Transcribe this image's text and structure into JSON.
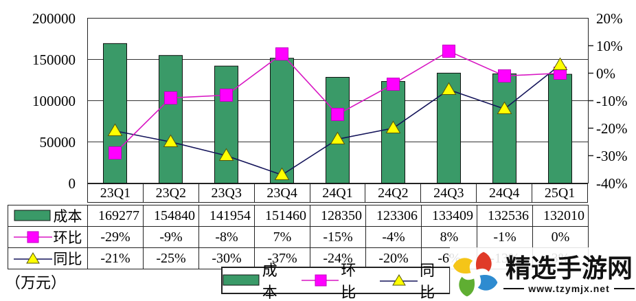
{
  "chart_data": {
    "type": "combo-bar-line",
    "categories": [
      "23Q1",
      "23Q2",
      "23Q3",
      "23Q4",
      "24Q1",
      "24Q2",
      "24Q3",
      "24Q4",
      "25Q1"
    ],
    "series": [
      {
        "name": "成本",
        "type": "bar",
        "axis": "left",
        "marker": "bar-swatch",
        "values": [
          169277,
          154840,
          141954,
          151460,
          128350,
          123306,
          133409,
          132536,
          132010
        ],
        "color": "#3A9A68",
        "line_color": "#111111"
      },
      {
        "name": "环比",
        "type": "line",
        "axis": "right",
        "marker": "square",
        "values": [
          -29,
          -9,
          -8,
          7,
          -15,
          -4,
          8,
          -1,
          0
        ],
        "color": "#FF00FF",
        "line_color": "#D817C3"
      },
      {
        "name": "同比",
        "type": "line",
        "axis": "right",
        "marker": "triangle",
        "values": [
          -21,
          -25,
          -30,
          -37,
          -24,
          -20,
          -6,
          -13,
          3
        ],
        "color": "#FFFF00",
        "line_color": "#14145A"
      }
    ],
    "left_axis": {
      "ticks": [
        "200000",
        "150000",
        "100000",
        "50000",
        "0"
      ],
      "min": 0,
      "max": 200000
    },
    "right_axis": {
      "ticks": [
        "20%",
        "10%",
        "0%",
        "-10%",
        "-20%",
        "-30%",
        "-40%"
      ],
      "min": -40,
      "max": 20
    },
    "grid": true,
    "legend_position": "bottom",
    "unit_label": "（万元）"
  },
  "table": {
    "rows": [
      {
        "label": "成本",
        "icon": "bar-swatch",
        "values": [
          "169277",
          "154840",
          "141954",
          "151460",
          "128350",
          "123306",
          "133409",
          "132536",
          "132010"
        ]
      },
      {
        "label": "环比",
        "icon": "square-marker",
        "values": [
          "-29%",
          "-9%",
          "-8%",
          "7%",
          "-15%",
          "-4%",
          "8%",
          "-1%",
          "0%"
        ]
      },
      {
        "label": "同比",
        "icon": "triangle-marker",
        "values": [
          "-21%",
          "-25%",
          "-30%",
          "-37%",
          "-24%",
          "-20%",
          "-6%",
          "-13%",
          "3%"
        ]
      }
    ]
  },
  "legend": {
    "items": [
      {
        "label": "成本",
        "icon": "bar-swatch"
      },
      {
        "label": "环比",
        "icon": "square-marker"
      },
      {
        "label": "同比",
        "icon": "triangle-marker"
      }
    ]
  },
  "watermark": {
    "title": "精选手游网",
    "url": "www.tzymjx.net",
    "logo_colors": [
      "#E03A28",
      "#2E8BD0",
      "#5FAE32",
      "#F5C518"
    ]
  }
}
